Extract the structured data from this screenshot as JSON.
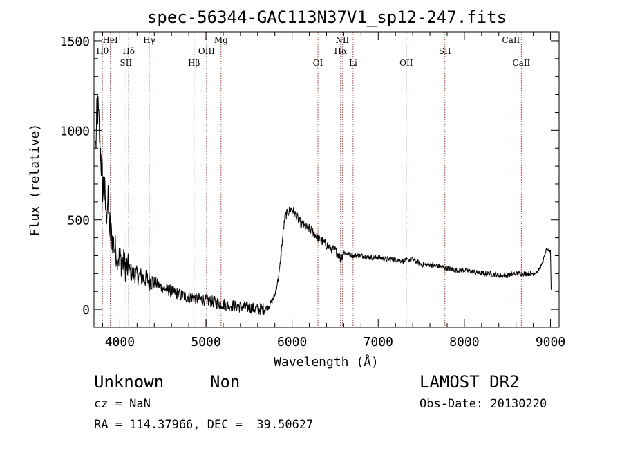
{
  "chart_data": {
    "type": "line",
    "title": "spec-56344-GAC113N37V1_sp12-247.fits",
    "xlabel": "Wavelength (Å)",
    "ylabel": "Flux (relative)",
    "xlim": [
      3700,
      9100
    ],
    "ylim": [
      -100,
      1550
    ],
    "x_ticks": [
      4000,
      5000,
      6000,
      7000,
      8000,
      9000
    ],
    "x_tick_labels": [
      "4000",
      "5000",
      "6000",
      "7000",
      "8000",
      "9000"
    ],
    "y_ticks": [
      0,
      500,
      1000,
      1500
    ],
    "y_tick_labels": [
      "0",
      "500",
      "1000",
      "1500"
    ],
    "grid": false,
    "series": [
      {
        "name": "spectrum",
        "x": [
          3720,
          3740,
          3760,
          3780,
          3800,
          3820,
          3840,
          3860,
          3880,
          3900,
          3920,
          3950,
          3980,
          4000,
          4050,
          4100,
          4150,
          4200,
          4250,
          4300,
          4400,
          4500,
          4600,
          4700,
          4800,
          4900,
          5000,
          5100,
          5200,
          5300,
          5400,
          5500,
          5600,
          5700,
          5750,
          5800,
          5850,
          5880,
          5900,
          5920,
          5950,
          5980,
          6000,
          6050,
          6100,
          6150,
          6200,
          6250,
          6300,
          6350,
          6400,
          6450,
          6500,
          6550,
          6563,
          6600,
          6650,
          6700,
          6800,
          6900,
          7000,
          7100,
          7200,
          7300,
          7400,
          7500,
          7600,
          7700,
          7800,
          7900,
          8000,
          8100,
          8200,
          8300,
          8400,
          8500,
          8600,
          8700,
          8800,
          8850,
          8900,
          8950,
          9000,
          9010
        ],
        "y": [
          900,
          1150,
          1000,
          850,
          700,
          650,
          550,
          600,
          450,
          420,
          380,
          330,
          300,
          280,
          250,
          220,
          200,
          190,
          180,
          170,
          150,
          120,
          100,
          80,
          70,
          60,
          50,
          40,
          30,
          20,
          15,
          10,
          0,
          5,
          30,
          80,
          200,
          350,
          450,
          520,
          540,
          560,
          560,
          520,
          480,
          460,
          450,
          430,
          400,
          380,
          360,
          340,
          330,
          300,
          280,
          320,
          310,
          300,
          300,
          290,
          290,
          280,
          280,
          270,
          280,
          250,
          250,
          240,
          230,
          220,
          220,
          210,
          200,
          200,
          190,
          190,
          200,
          200,
          200,
          210,
          250,
          330,
          330,
          50
        ],
        "noise_amplitude_note": "strong noise at blue end and around 4000-5700 Å"
      }
    ],
    "line_markers": [
      {
        "label": "Hθ",
        "x": 3798,
        "row": 2
      },
      {
        "label": "HeI",
        "x": 3889,
        "row": 1
      },
      {
        "label": "Hδ",
        "x": 4102,
        "row": 2
      },
      {
        "label": "SII",
        "x": 4072,
        "row": 3
      },
      {
        "label": "Hγ",
        "x": 4341,
        "row": 1
      },
      {
        "label": "Hβ",
        "x": 4861,
        "row": 3
      },
      {
        "label": "OIII",
        "x": 5007,
        "row": 2
      },
      {
        "label": "Mg",
        "x": 5175,
        "row": 1
      },
      {
        "label": "OI",
        "x": 6300,
        "row": 3
      },
      {
        "label": "NII",
        "x": 6583,
        "row": 1
      },
      {
        "label": "Hα",
        "x": 6563,
        "row": 2
      },
      {
        "label": "Li",
        "x": 6708,
        "row": 3
      },
      {
        "label": "OII",
        "x": 7325,
        "row": 3
      },
      {
        "label": "SII",
        "x": 7774,
        "row": 2
      },
      {
        "label": "CaII",
        "x": 8542,
        "row": 1
      },
      {
        "label": "CaII",
        "x": 8662,
        "row": 3
      }
    ]
  },
  "info": {
    "object_class": "Unknown",
    "object_subclass": "Non",
    "survey": "LAMOST DR2",
    "redshift": "cz = NaN",
    "obs_date": "Obs-Date: 20130220",
    "coords": "RA = 114.37966, DEC =  39.50627"
  },
  "colors": {
    "spectrum": "#000000",
    "marker": "#b03030",
    "axes": "#000000"
  }
}
